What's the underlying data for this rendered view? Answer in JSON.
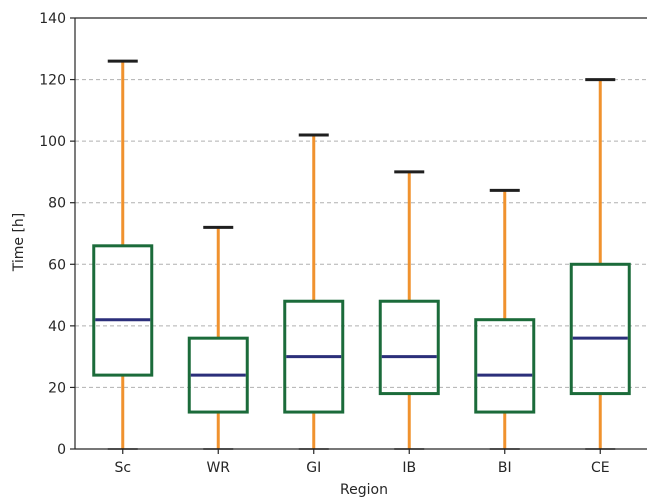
{
  "chart_data": {
    "type": "box",
    "title": "",
    "xlabel": "Region",
    "ylabel": "Time [h]",
    "ylim": [
      0,
      140
    ],
    "yticks": [
      0,
      20,
      40,
      60,
      80,
      100,
      120,
      140
    ],
    "grid": "horizontal dashed",
    "categories": [
      "Sc",
      "WR",
      "GI",
      "IB",
      "BI",
      "CE"
    ],
    "boxes": [
      {
        "whisker_low": 0,
        "q1": 24,
        "median": 42,
        "q3": 66,
        "whisker_high": 126
      },
      {
        "whisker_low": 0,
        "q1": 12,
        "median": 24,
        "q3": 36,
        "whisker_high": 72
      },
      {
        "whisker_low": 0,
        "q1": 12,
        "median": 30,
        "q3": 48,
        "whisker_high": 102
      },
      {
        "whisker_low": 0,
        "q1": 18,
        "median": 30,
        "q3": 48,
        "whisker_high": 90
      },
      {
        "whisker_low": 0,
        "q1": 12,
        "median": 24,
        "q3": 42,
        "whisker_high": 84
      },
      {
        "whisker_low": 0,
        "q1": 18,
        "median": 36,
        "q3": 60,
        "whisker_high": 120
      }
    ],
    "colors": {
      "box": "#1b6b3a",
      "median": "#2b2f7a",
      "whisker": "#f0922e",
      "cap": "#1f1f1f",
      "grid": "#b0b0b0",
      "axis": "#262626"
    }
  }
}
